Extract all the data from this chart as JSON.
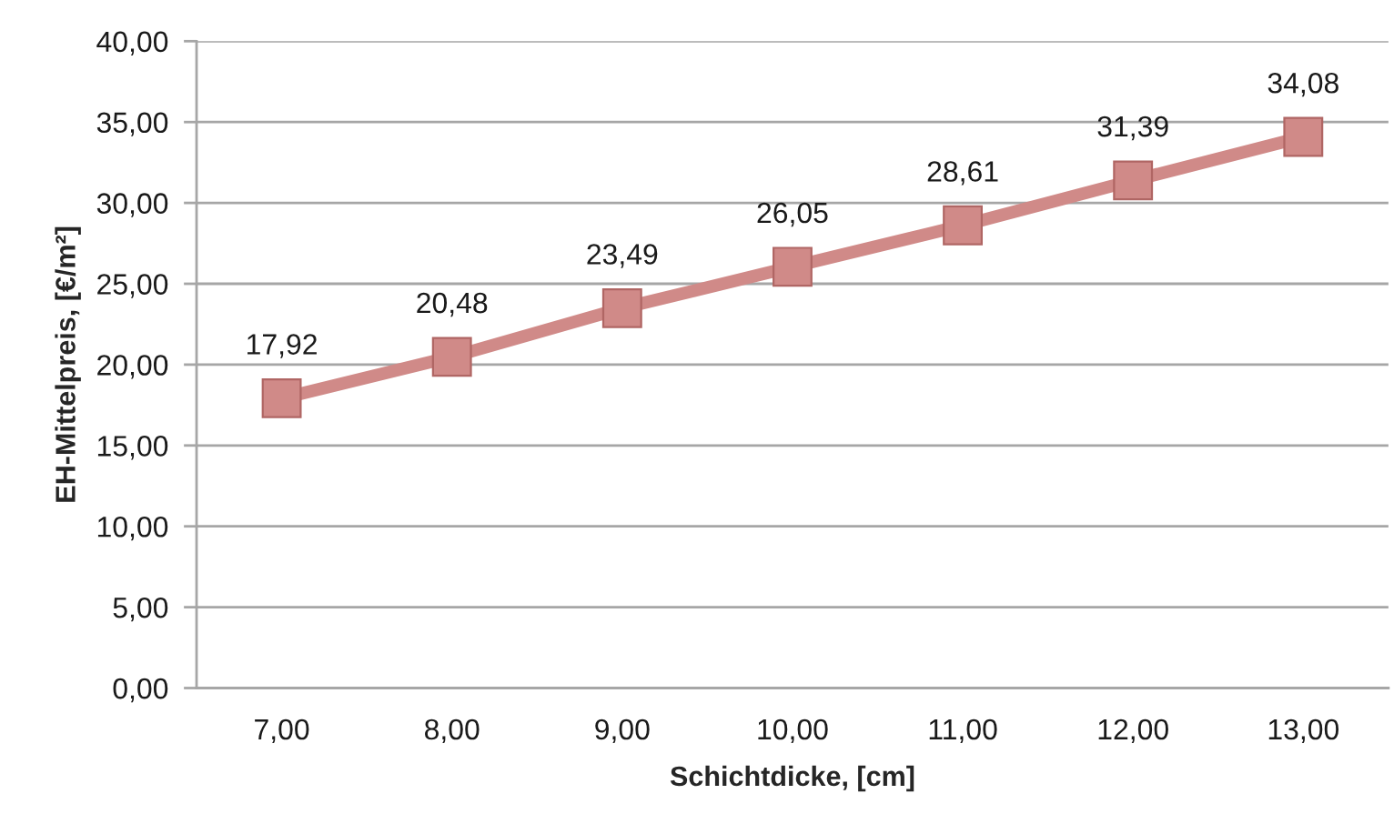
{
  "chart_data": {
    "type": "line",
    "xlabel": "Schichtdicke, [cm]",
    "ylabel": "EH-Mittelpreis, [€/m²]",
    "categories": [
      "7,00",
      "8,00",
      "9,00",
      "10,00",
      "11,00",
      "12,00",
      "13,00"
    ],
    "series": [
      {
        "color": "#d08a88",
        "values": [
          17.92,
          20.48,
          23.49,
          26.05,
          28.61,
          31.39,
          34.08
        ],
        "value_labels": [
          "17,92",
          "20,48",
          "23,49",
          "26,05",
          "28,61",
          "31,39",
          "34,08"
        ]
      }
    ],
    "ylim": [
      0,
      40
    ],
    "yticks": [
      {
        "value": 0,
        "label": "0,00"
      },
      {
        "value": 5,
        "label": "5,00"
      },
      {
        "value": 10,
        "label": "10,00"
      },
      {
        "value": 15,
        "label": "15,00"
      },
      {
        "value": 20,
        "label": "20,00"
      },
      {
        "value": 25,
        "label": "25,00"
      },
      {
        "value": 30,
        "label": "30,00"
      },
      {
        "value": 35,
        "label": "35,00"
      },
      {
        "value": 40,
        "label": "40,00"
      }
    ],
    "grid": "y",
    "legend": false,
    "marker": "square",
    "line_style": "solid"
  }
}
